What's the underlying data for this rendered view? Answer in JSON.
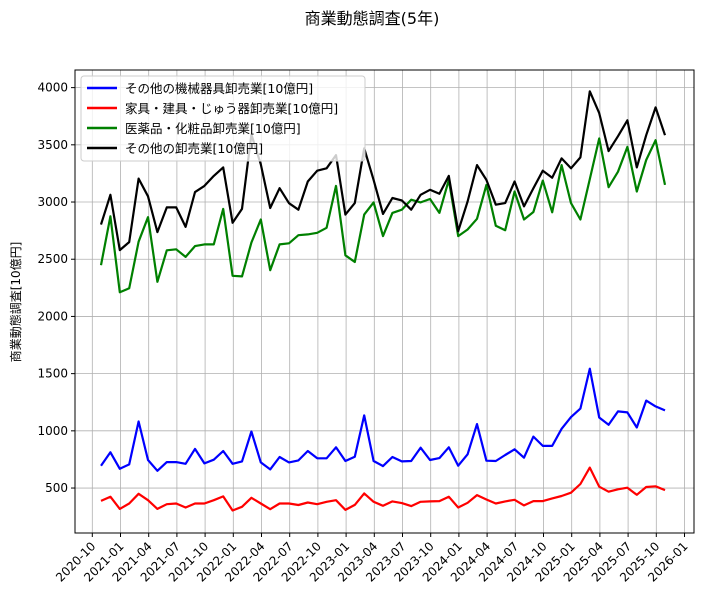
{
  "chart_data": {
    "type": "line",
    "title": "商業動態調査(5年)",
    "xlabel": "",
    "ylabel": "商業動態調査[10億円]",
    "ylim": [
      107,
      4154
    ],
    "yticks": [
      500,
      1000,
      1500,
      2000,
      2500,
      3000,
      3500,
      4000
    ],
    "xticks": [
      "2020-10",
      "2021-01",
      "2021-04",
      "2021-07",
      "2021-10",
      "2022-01",
      "2022-04",
      "2022-07",
      "2022-10",
      "2023-01",
      "2023-04",
      "2023-07",
      "2023-10",
      "2024-01",
      "2024-04",
      "2024-07",
      "2024-10",
      "2025-01",
      "2025-04",
      "2025-07",
      "2025-10",
      "2026-01"
    ],
    "x_start": "2020-10",
    "x_frequency": "monthly (plotted at month end)",
    "grid": true,
    "legend_position": "top-left",
    "series": [
      {
        "name": "その他の機械器具卸売業[10億円]",
        "color": "#0000ff",
        "values": [
          695,
          812,
          668,
          707,
          1082,
          745,
          651,
          727,
          727,
          712,
          842,
          715,
          748,
          824,
          712,
          733,
          994,
          724,
          663,
          771,
          724,
          742,
          824,
          760,
          760,
          856,
          736,
          774,
          1135,
          736,
          692,
          771,
          733,
          736,
          853,
          745,
          762,
          856,
          695,
          795,
          1059,
          739,
          736,
          789,
          839,
          765,
          950,
          868,
          868,
          1018,
          1120,
          1194,
          1543,
          1117,
          1053,
          1170,
          1161,
          1029,
          1264,
          1214,
          1179
        ]
      },
      {
        "name": "家具・建具・じゅう器卸売業[10億円]",
        "color": "#ff0000",
        "values": [
          388,
          424,
          318,
          365,
          450,
          394,
          318,
          359,
          365,
          330,
          365,
          365,
          394,
          427,
          304,
          336,
          415,
          365,
          315,
          365,
          365,
          352,
          374,
          359,
          380,
          394,
          309,
          353,
          453,
          380,
          345,
          383,
          368,
          342,
          380,
          383,
          386,
          424,
          330,
          371,
          438,
          400,
          365,
          383,
          397,
          348,
          386,
          386,
          409,
          430,
          459,
          535,
          679,
          512,
          468,
          489,
          503,
          441,
          509,
          515,
          482
        ]
      },
      {
        "name": "医薬品・化粧品卸売業[10億円]",
        "color": "#008000",
        "values": [
          2448,
          2875,
          2211,
          2246,
          2653,
          2867,
          2303,
          2578,
          2587,
          2520,
          2615,
          2630,
          2630,
          2940,
          2355,
          2350,
          2645,
          2847,
          2404,
          2630,
          2639,
          2710,
          2717,
          2731,
          2775,
          3141,
          2534,
          2476,
          2890,
          2997,
          2702,
          2905,
          2933,
          3020,
          2997,
          3026,
          2905,
          3193,
          2702,
          2760,
          2853,
          3150,
          2793,
          2754,
          3092,
          2847,
          2913,
          3187,
          2910,
          3323,
          2991,
          2847,
          3200,
          3555,
          3130,
          3265,
          3482,
          3092,
          3367,
          3540,
          3150
        ]
      },
      {
        "name": "その他の卸売業[10億円]",
        "color": "#000000",
        "values": [
          2803,
          3063,
          2580,
          2650,
          3205,
          3050,
          2737,
          2953,
          2953,
          2783,
          3087,
          3141,
          3228,
          3303,
          2818,
          2940,
          3590,
          3330,
          2948,
          3121,
          2990,
          2933,
          3179,
          3274,
          3295,
          3410,
          2890,
          2991,
          3470,
          3193,
          2896,
          3035,
          3014,
          2933,
          3063,
          3107,
          3072,
          3228,
          2745,
          3005,
          3323,
          3193,
          2977,
          2991,
          3179,
          2962,
          3121,
          3274,
          3213,
          3381,
          3295,
          3390,
          3968,
          3777,
          3445,
          3575,
          3714,
          3303,
          3584,
          3827,
          3584
        ]
      }
    ]
  }
}
